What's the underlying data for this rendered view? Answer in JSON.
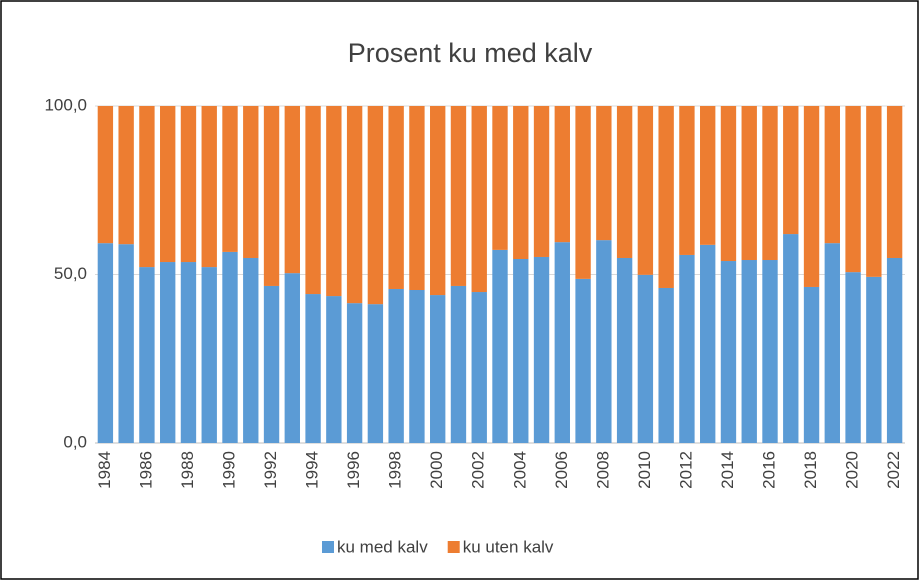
{
  "chart_data": {
    "type": "stacked_bar",
    "title": "Prosent ku med kalv",
    "categories": [
      "1984",
      null,
      "1986",
      null,
      "1988",
      null,
      "1990",
      null,
      "1992",
      null,
      "1994",
      null,
      "1996",
      null,
      "1998",
      null,
      "2000",
      null,
      "2002",
      null,
      "2004",
      null,
      "2006",
      null,
      "2008",
      null,
      "2010",
      null,
      "2012",
      null,
      "2014",
      null,
      "2016",
      null,
      "2018",
      null,
      "2020",
      null,
      "2022"
    ],
    "series": [
      {
        "name": "ku med kalv",
        "color": "#5b9bd5",
        "values": [
          59.3,
          59.0,
          52.2,
          53.7,
          53.7,
          52.2,
          56.7,
          54.9,
          46.6,
          50.4,
          44.2,
          43.6,
          41.5,
          41.2,
          45.7,
          45.4,
          43.9,
          46.6,
          44.8,
          57.3,
          54.6,
          55.2,
          59.6,
          48.7,
          60.2,
          54.9,
          49.9,
          46.0,
          55.8,
          58.8,
          54.0,
          54.3,
          54.3,
          62.0,
          46.3,
          59.3,
          50.7,
          49.3,
          54.9
        ]
      },
      {
        "name": "ku uten kalv",
        "color": "#ed7d31",
        "values": [
          40.7,
          41.0,
          47.8,
          46.3,
          46.3,
          47.8,
          43.3,
          45.1,
          53.4,
          49.6,
          55.8,
          56.4,
          58.5,
          58.8,
          54.3,
          54.6,
          56.1,
          53.4,
          55.2,
          42.7,
          45.4,
          44.8,
          40.4,
          51.3,
          39.8,
          45.1,
          50.1,
          54.0,
          44.2,
          41.2,
          46.0,
          45.7,
          45.7,
          38.0,
          53.7,
          40.7,
          49.3,
          50.7,
          45.1
        ]
      }
    ],
    "ylim": [
      0,
      100
    ],
    "yticks": [
      {
        "value": 0,
        "label": "0,0"
      },
      {
        "value": 50,
        "label": "50,0"
      },
      {
        "value": 100,
        "label": "100,0"
      }
    ],
    "grid": true,
    "legend": "bottom"
  }
}
